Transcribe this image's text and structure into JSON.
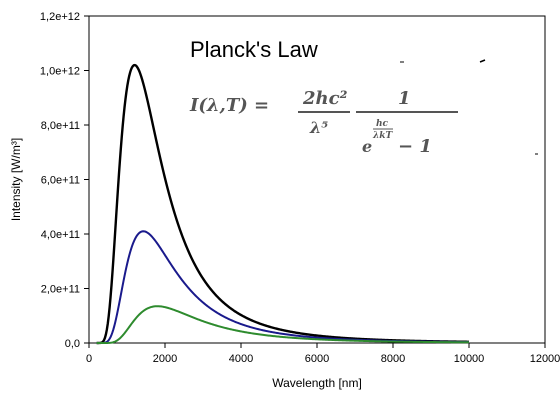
{
  "chart_data": {
    "type": "line",
    "title": "Planck's Law",
    "formula": {
      "lhs": "I(λ,T) =",
      "frac1_num": "2hc²",
      "frac1_den": "λ⁵",
      "frac2_num": "1",
      "frac2_den_exp_num": "hc",
      "frac2_den_exp_den": "λkT",
      "frac2_den_base": "e",
      "frac2_den_minus": "− 1"
    },
    "xlabel": "Wavelength [nm]",
    "ylabel": "Intensity [W/m³]",
    "xlim": [
      0,
      12000
    ],
    "ylim": [
      0,
      1200000000000.0
    ],
    "x_ticks": [
      0,
      2000,
      4000,
      6000,
      8000,
      10000,
      12000
    ],
    "x_tick_labels": [
      "0",
      "2000",
      "4000",
      "6000",
      "8000",
      "10000",
      "12000"
    ],
    "y_ticks": [
      0,
      200000000000.0,
      400000000000.0,
      600000000000.0,
      800000000000.0,
      1000000000000.0,
      1200000000000.0
    ],
    "y_tick_labels": [
      "0,0",
      "2,0e+11",
      "4,0e+11",
      "6,0e+11",
      "8,0e+11",
      "1,0e+12",
      "1,2e+12"
    ],
    "grid": false,
    "x_range_plotted": [
      200,
      10000
    ],
    "series": [
      {
        "color": "#000000",
        "peak_x": 1200,
        "peak_y": 1020000000000.0
      },
      {
        "color": "#1a1a8c",
        "peak_x": 1430,
        "peak_y": 410000000000.0
      },
      {
        "color": "#2e8b2e",
        "peak_x": 1800,
        "peak_y": 135000000000.0
      }
    ]
  }
}
